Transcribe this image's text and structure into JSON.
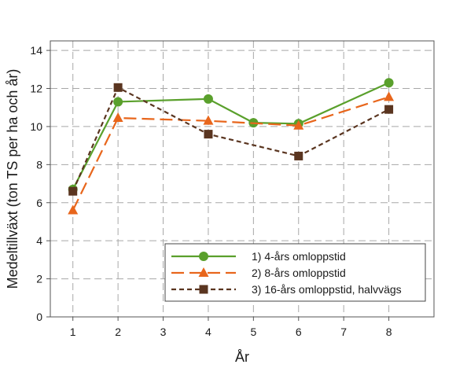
{
  "chart_data": {
    "type": "line",
    "xlabel": "År",
    "ylabel": "Medeltillväxt (ton TS per ha och år)",
    "xlim": [
      0.5,
      9.0
    ],
    "ylim": [
      0,
      14.5
    ],
    "xticks": [
      1,
      2,
      3,
      4,
      5,
      6,
      7,
      8
    ],
    "yticks": [
      0,
      2,
      4,
      6,
      8,
      10,
      12,
      14
    ],
    "grid": true,
    "legend_position": "bottom-right",
    "series": [
      {
        "name": "1) 4-års omloppstid",
        "color": "#5aa02c",
        "line_style": "solid",
        "marker": "circle",
        "x": [
          1,
          2,
          4,
          5,
          6,
          8
        ],
        "y": [
          6.7,
          11.3,
          11.45,
          10.2,
          10.15,
          12.3
        ]
      },
      {
        "name": "2) 8-års omloppstid",
        "color": "#e8661c",
        "line_style": "long-dash",
        "marker": "triangle",
        "x": [
          1,
          2,
          4,
          6,
          8
        ],
        "y": [
          5.6,
          10.45,
          10.3,
          10.05,
          11.55
        ]
      },
      {
        "name": "3) 16-års omloppstid, halvvägs",
        "color": "#5a3520",
        "line_style": "short-dash",
        "marker": "square",
        "x": [
          1,
          2,
          4,
          6,
          8
        ],
        "y": [
          6.6,
          12.05,
          9.6,
          8.45,
          10.9
        ]
      }
    ]
  }
}
